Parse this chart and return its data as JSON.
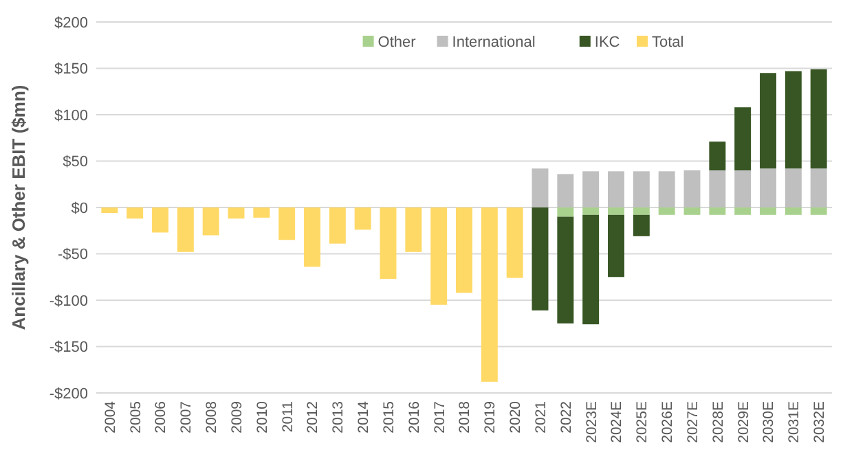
{
  "chart_data": {
    "type": "bar",
    "stacked": true,
    "ylabel": "Ancillary & Other EBIT ($mn)",
    "categories": [
      "2004",
      "2005",
      "2006",
      "2007",
      "2008",
      "2009",
      "2010",
      "2011",
      "2012",
      "2013",
      "2014",
      "2015",
      "2016",
      "2017",
      "2018",
      "2019",
      "2020",
      "2021",
      "2022",
      "2023E",
      "2024E",
      "2025E",
      "2026E",
      "2027E",
      "2028E",
      "2029E",
      "2030E",
      "2031E",
      "2032E"
    ],
    "series": [
      {
        "name": "Other",
        "color": "#a9d18e",
        "values": [
          null,
          null,
          null,
          null,
          null,
          null,
          null,
          null,
          null,
          null,
          null,
          null,
          null,
          null,
          null,
          null,
          null,
          null,
          -10,
          -8,
          -8,
          -8,
          -8,
          -8,
          -8,
          -8,
          -8,
          -8,
          -8
        ]
      },
      {
        "name": "International",
        "color": "#bfbfbf",
        "values": [
          null,
          null,
          null,
          null,
          null,
          null,
          null,
          null,
          null,
          null,
          null,
          null,
          null,
          null,
          null,
          null,
          null,
          42,
          36,
          39,
          39,
          39,
          39,
          40,
          40,
          40,
          42,
          42,
          42
        ]
      },
      {
        "name": "IKC",
        "color": "#375623",
        "values": [
          null,
          null,
          null,
          null,
          null,
          null,
          null,
          null,
          null,
          null,
          null,
          null,
          null,
          null,
          null,
          null,
          null,
          -111,
          -115,
          -118,
          -67,
          -23,
          null,
          null,
          31,
          68,
          103,
          105,
          107
        ]
      },
      {
        "name": "Total",
        "color": "#ffd966",
        "values": [
          -6,
          -12,
          -27,
          -48,
          -30,
          -12,
          -11,
          -35,
          -64,
          -39,
          -24,
          -77,
          -48,
          -105,
          -92,
          -188,
          -76,
          null,
          null,
          null,
          null,
          null,
          null,
          null,
          null,
          null,
          null,
          null,
          null
        ]
      }
    ],
    "ylim": [
      -200,
      200
    ],
    "yticks": [
      {
        "value": -200,
        "label": "-$200"
      },
      {
        "value": -150,
        "label": "-$150"
      },
      {
        "value": -100,
        "label": "-$100"
      },
      {
        "value": -50,
        "label": "-$50"
      },
      {
        "value": 0,
        "label": "$0"
      },
      {
        "value": 50,
        "label": "$50"
      },
      {
        "value": 100,
        "label": "$100"
      },
      {
        "value": 150,
        "label": "$150"
      },
      {
        "value": 200,
        "label": "$200"
      }
    ],
    "grid": "y",
    "legend": "top right"
  }
}
